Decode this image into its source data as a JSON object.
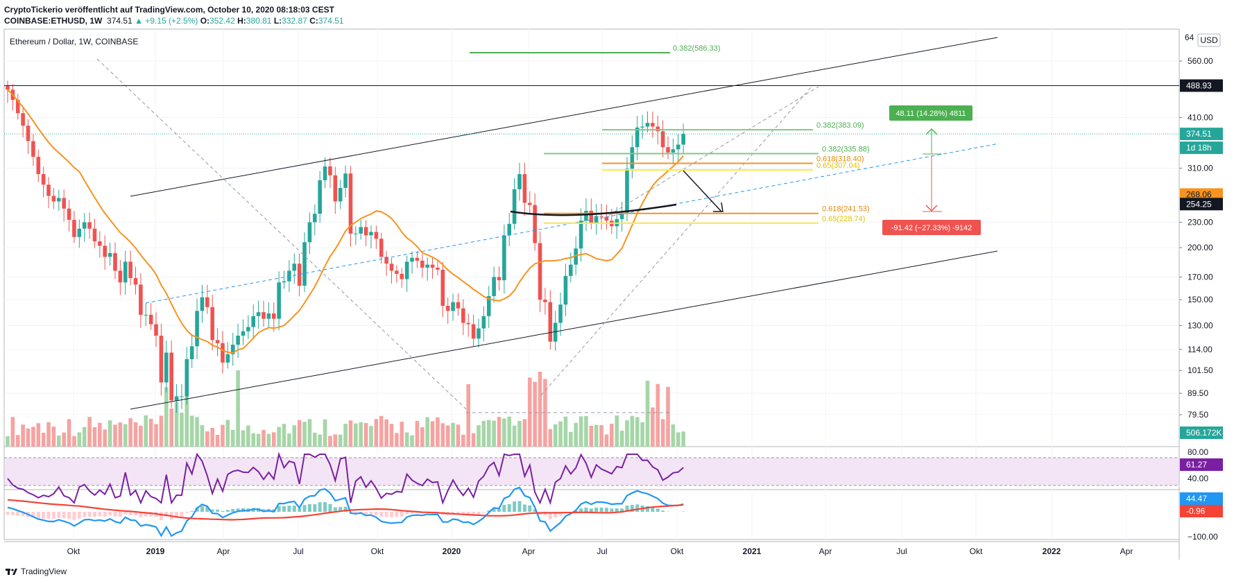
{
  "header": {
    "publisher_line": "CryptoTickerio veröffentlicht auf TradingView.com, October 10, 2020 08:18:03 CEST",
    "symbol": "COINBASE:ETHUSD, 1W",
    "last": "374.51",
    "change": "+9.15 (+2.5%)",
    "o_label": "O:",
    "o": "352.42",
    "h_label": "H:",
    "h": "380.81",
    "l_label": "L:",
    "l": "332.87",
    "c_label": "C:",
    "c": "374.51"
  },
  "chart_title": "Ethereum / Dollar, 1W, COINBASE",
  "currency_button": "USD",
  "footer_brand": "TradingView",
  "colors": {
    "up": "#26a69a",
    "down": "#ef5350",
    "ma": "#f7931e",
    "rsi": "#7b1fa2",
    "macd": "#2196f3",
    "signal": "#f44336"
  },
  "price_badges": {
    "resistance": "488.93",
    "last": "374.51",
    "countdown": "1d 18h",
    "ma": "268.06",
    "curve": "254.25",
    "volume": "506.172K",
    "rsi": "61.27",
    "macd": "44.47",
    "signal": "-0.96"
  },
  "annotations": {
    "fib1": "0.382(586.33)",
    "fib2": "0.382(383.09)",
    "fib3": "0.382(335.88)",
    "fib4": "0.618(318.40)",
    "fib5": "0.65(307.04)",
    "fib6": "0.618(241.53)",
    "fib7": "0.65(228.74)",
    "gain": "48.11 (14.28%) 4811",
    "loss": "-91.42 (−27.33%) -9142"
  },
  "chart_data": {
    "type": "candlestick",
    "title": "Ethereum / Dollar, 1W, COINBASE",
    "y_scale": "log",
    "price_ticks": [
      560,
      410,
      310,
      230,
      200,
      170,
      150,
      130,
      114,
      101.5,
      89.5,
      79.5
    ],
    "price_ticks_labels": [
      "560.00",
      "410.00",
      "310.00",
      "230.00",
      "200.00",
      "170.00",
      "150.00",
      "130.00",
      "114.00",
      "101.50",
      "89.50",
      "79.50"
    ],
    "top_tick_partial": "64",
    "rsi_ticks": [
      "80.00",
      "40.00"
    ],
    "macd_ticks": [
      "−100.00"
    ],
    "x_labels": [
      "Okt",
      "2019",
      "Apr",
      "Jul",
      "Okt",
      "2020",
      "Apr",
      "Jul",
      "Okt",
      "2021",
      "Apr",
      "Jul",
      "Okt",
      "2022",
      "Apr"
    ],
    "resistance_line": 488.93,
    "candle_closes": [
      478,
      452,
      420,
      392,
      360,
      330,
      300,
      283,
      266,
      258,
      263,
      248,
      233,
      212,
      222,
      230,
      222,
      207,
      202,
      190,
      194,
      176,
      165,
      185,
      169,
      163,
      138,
      138,
      131,
      123,
      95,
      112,
      86,
      88,
      88,
      108,
      116,
      141,
      152,
      144,
      120,
      118,
      106,
      111,
      117,
      123,
      126,
      129,
      137,
      140,
      135,
      139,
      135,
      165,
      166,
      176,
      183,
      162,
      206,
      230,
      241,
      290,
      313,
      298,
      258,
      278,
      301,
      216,
      216,
      224,
      214,
      218,
      210,
      190,
      183,
      176,
      173,
      168,
      185,
      189,
      186,
      179,
      182,
      179,
      177,
      145,
      141,
      148,
      143,
      132,
      131,
      121,
      128,
      137,
      153,
      170,
      167,
      214,
      228,
      276,
      300,
      256,
      253,
      205,
      150,
      148,
      119,
      132,
      146,
      171,
      182,
      199,
      232,
      245,
      229,
      238,
      237,
      232,
      225,
      234,
      241,
      309,
      348,
      388,
      390,
      398,
      390,
      380,
      348,
      338,
      344,
      353,
      374.51
    ],
    "ma50_path_desc": "orange moving average",
    "fib_levels": [
      586.33,
      383.09,
      335.88,
      318.4,
      307.04,
      241.53,
      228.74
    ]
  }
}
